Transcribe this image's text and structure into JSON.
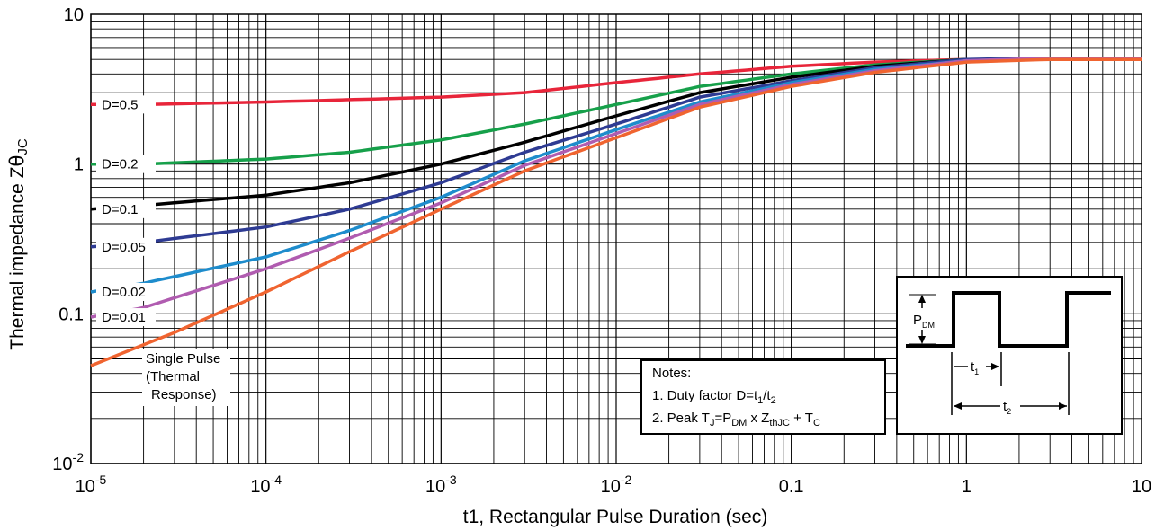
{
  "chart_data": {
    "type": "line",
    "xscale": "log",
    "yscale": "log",
    "xlim": [
      1e-05,
      10
    ],
    "ylim": [
      0.01,
      10
    ],
    "grid": true,
    "xlabel": "t1, Rectangular Pulse Duration (sec)",
    "ylabel": "Thermal impedance Z",
    "ylabel_symbol": "θ",
    "ylabel_sub": "JC",
    "x_ticks": [
      {
        "base": "10",
        "exp": "-5"
      },
      {
        "base": "10",
        "exp": "-4"
      },
      {
        "base": "10",
        "exp": "-3"
      },
      {
        "base": "10",
        "exp": "-2"
      },
      {
        "base": "0.1",
        "exp": ""
      },
      {
        "base": "1",
        "exp": ""
      },
      {
        "base": "10",
        "exp": ""
      }
    ],
    "y_ticks": [
      {
        "base": "10",
        "exp": "-2"
      },
      {
        "base": "0.1",
        "exp": ""
      },
      {
        "base": "1",
        "exp": ""
      },
      {
        "base": "10",
        "exp": ""
      }
    ],
    "series": [
      {
        "name": "D=0.5",
        "color": "#e8253a",
        "x": [
          1e-05,
          2e-05,
          0.0001,
          0.001,
          0.003,
          0.01,
          0.03,
          0.1,
          0.3,
          1,
          3,
          10
        ],
        "y": [
          2.5,
          2.5,
          2.6,
          2.8,
          3.0,
          3.5,
          4.0,
          4.5,
          4.8,
          5.0,
          5.0,
          5.0
        ]
      },
      {
        "name": "D=0.2",
        "color": "#16a04a",
        "x": [
          1e-05,
          2e-05,
          0.0001,
          0.0003,
          0.001,
          0.003,
          0.01,
          0.03,
          0.1,
          0.3,
          1,
          3,
          10
        ],
        "y": [
          1.0,
          1.0,
          1.08,
          1.2,
          1.45,
          1.85,
          2.5,
          3.3,
          4.0,
          4.6,
          5.0,
          5.0,
          5.0
        ]
      },
      {
        "name": "D=0.1",
        "color": "#000000",
        "x": [
          1e-05,
          2e-05,
          0.0001,
          0.0003,
          0.001,
          0.003,
          0.01,
          0.03,
          0.1,
          0.3,
          1,
          3,
          10
        ],
        "y": [
          0.5,
          0.53,
          0.62,
          0.75,
          1.0,
          1.4,
          2.1,
          3.0,
          3.8,
          4.5,
          5.0,
          5.0,
          5.0
        ]
      },
      {
        "name": "D=0.05",
        "color": "#2e3b93",
        "x": [
          1e-05,
          2e-05,
          0.0001,
          0.0003,
          0.001,
          0.003,
          0.01,
          0.03,
          0.1,
          0.3,
          1,
          3,
          10
        ],
        "y": [
          0.28,
          0.3,
          0.38,
          0.5,
          0.75,
          1.2,
          1.85,
          2.8,
          3.6,
          4.4,
          5.0,
          5.1,
          5.1
        ]
      },
      {
        "name": "D=0.02",
        "color": "#1e8ccc",
        "x": [
          1e-05,
          2e-05,
          0.0001,
          0.0003,
          0.001,
          0.003,
          0.01,
          0.03,
          0.1,
          0.3,
          1,
          3,
          10
        ],
        "y": [
          0.14,
          0.16,
          0.24,
          0.36,
          0.6,
          1.05,
          1.7,
          2.6,
          3.5,
          4.3,
          4.9,
          5.1,
          5.1
        ]
      },
      {
        "name": "D=0.01",
        "color": "#b05cb0",
        "x": [
          1e-05,
          2e-05,
          0.0001,
          0.0003,
          0.001,
          0.003,
          0.01,
          0.03,
          0.1,
          0.3,
          1,
          3,
          10
        ],
        "y": [
          0.095,
          0.11,
          0.2,
          0.32,
          0.55,
          0.98,
          1.6,
          2.5,
          3.4,
          4.2,
          4.9,
          5.1,
          5.1
        ]
      },
      {
        "name": "Single Pulse",
        "color": "#f06430",
        "x": [
          1e-05,
          3e-05,
          0.0001,
          0.0003,
          0.001,
          0.003,
          0.01,
          0.03,
          0.1,
          0.3,
          1,
          3,
          10
        ],
        "y": [
          0.045,
          0.075,
          0.14,
          0.26,
          0.5,
          0.9,
          1.5,
          2.4,
          3.3,
          4.1,
          4.8,
          5.0,
          5.0
        ]
      }
    ],
    "series_labels": [
      "D=0.5",
      "D=0.2",
      "D=0.1",
      "D=0.05",
      "D=0.02",
      "D=0.01"
    ],
    "single_pulse_label": [
      "Single Pulse",
      "(Thermal",
      "Response)"
    ],
    "notes": {
      "title": "Notes:",
      "line1": {
        "prefix": "1.  Duty factor D=t",
        "s1": "1",
        "mid": "/t",
        "s2": "2"
      },
      "line2": {
        "prefix": "2.  Peak T",
        "s1": "J",
        "mid1": "=P",
        "s2": "DM",
        "mid2": " x Z",
        "s3": "thJC",
        "mid3": " + T",
        "s4": "C"
      }
    },
    "waveform": {
      "p_label": "P",
      "p_sub": "DM",
      "t1_label": "t",
      "t1_sub": "1",
      "t2_label": "t",
      "t2_sub": "2"
    }
  }
}
